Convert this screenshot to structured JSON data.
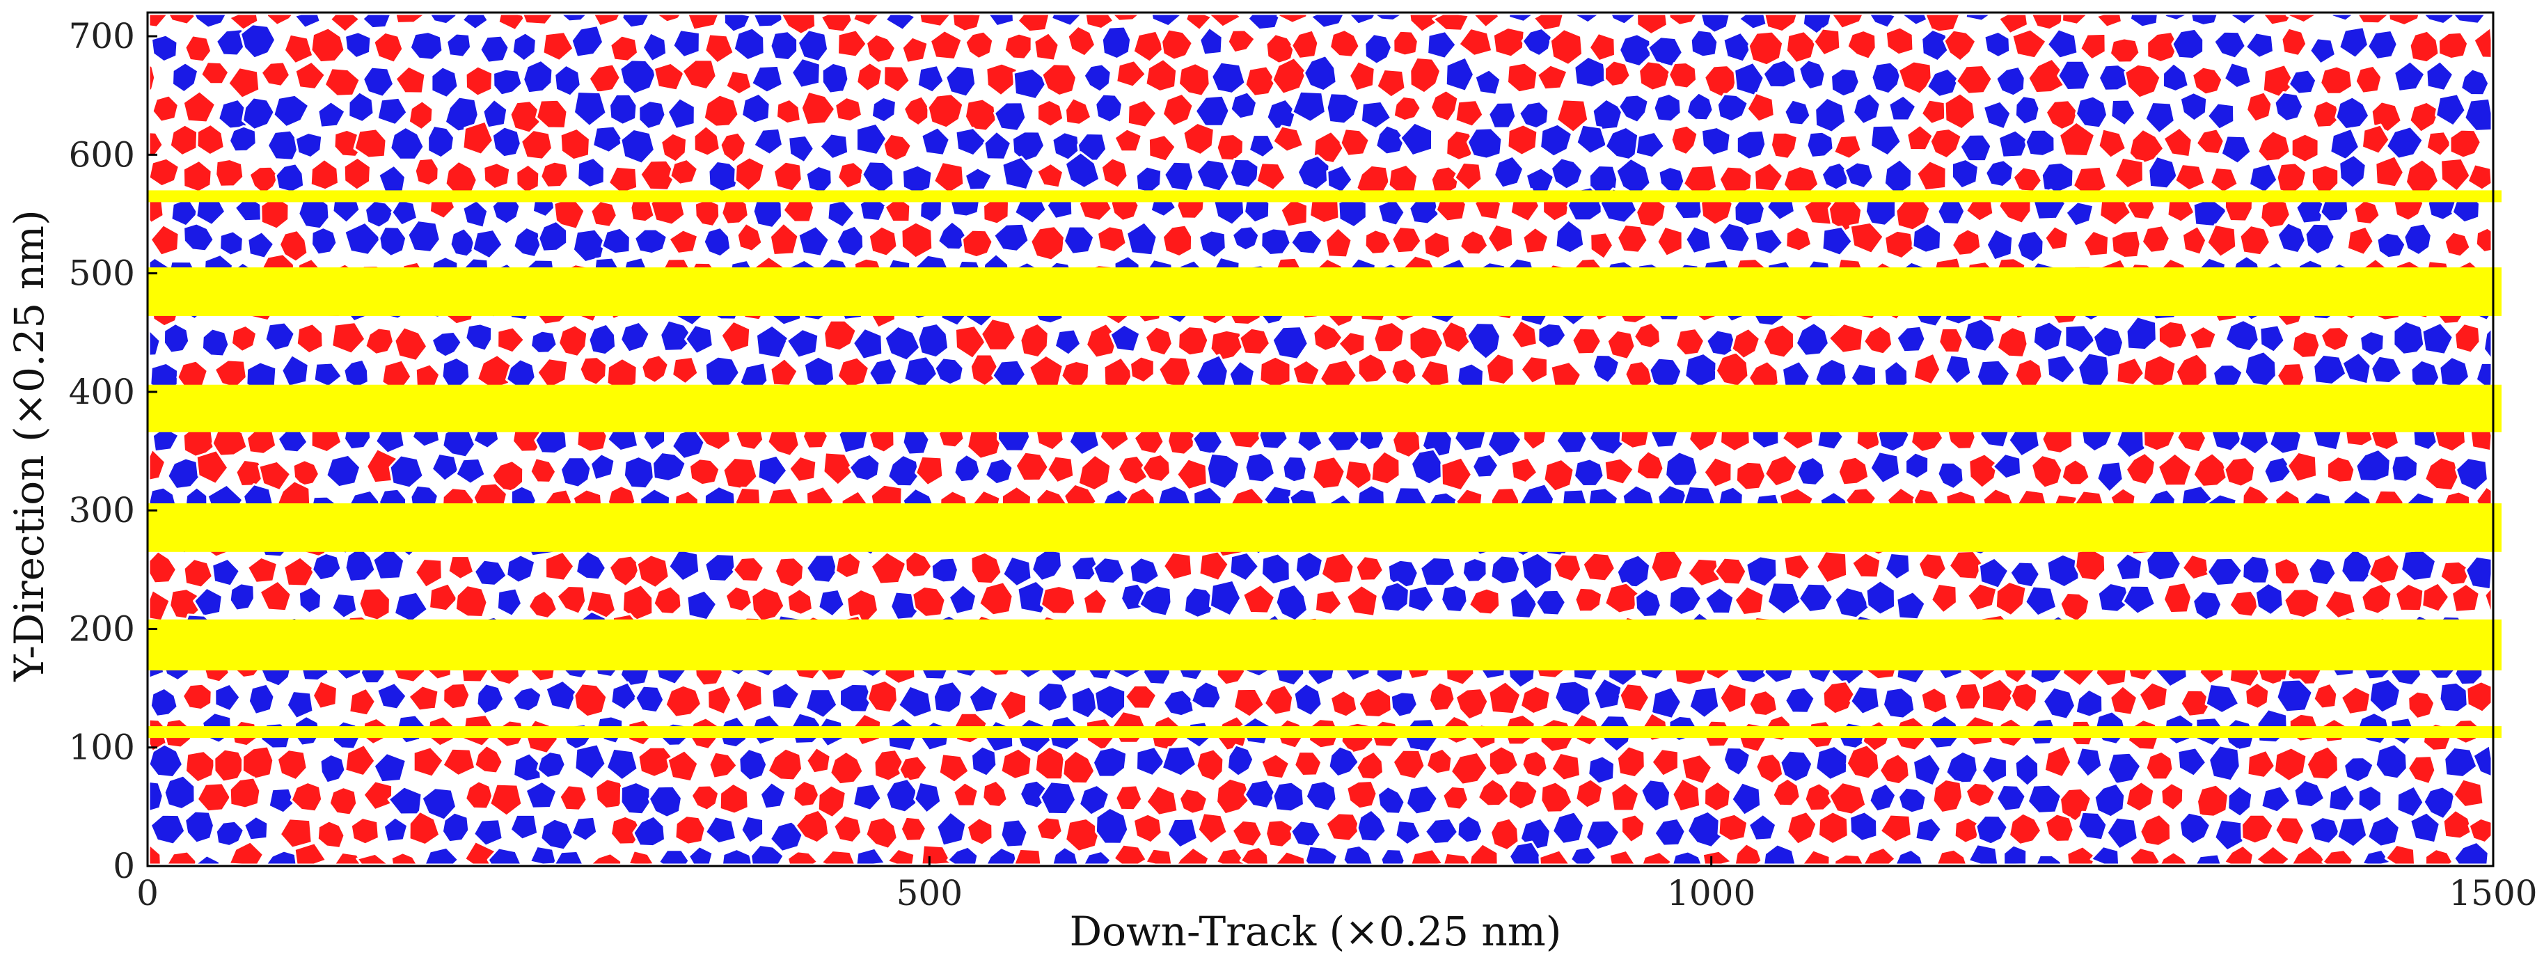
{
  "chart_data": {
    "type": "scatter",
    "title": "",
    "xlabel": "Down-Track (×0.25 nm)",
    "ylabel": "Y-Direction (×0.25 nm)",
    "xlim": [
      0,
      1500
    ],
    "ylim": [
      0,
      720
    ],
    "x_ticks": [
      "0",
      "500",
      "1000",
      "1500"
    ],
    "y_ticks": [
      "0",
      "100",
      "200",
      "300",
      "400",
      "500",
      "600",
      "700"
    ],
    "grain_colors": [
      "#ff1a1a",
      "#1a1ae6"
    ],
    "boundary_color": "#ffffff",
    "track_color": "#ffff00",
    "track_bands": [
      {
        "y_from": 108,
        "y_to": 118
      },
      {
        "y_from": 165,
        "y_to": 208
      },
      {
        "y_from": 265,
        "y_to": 306
      },
      {
        "y_from": 366,
        "y_to": 406
      },
      {
        "y_from": 464,
        "y_to": 505
      },
      {
        "y_from": 560,
        "y_to": 570
      }
    ],
    "legend": "none",
    "grid": false
  }
}
